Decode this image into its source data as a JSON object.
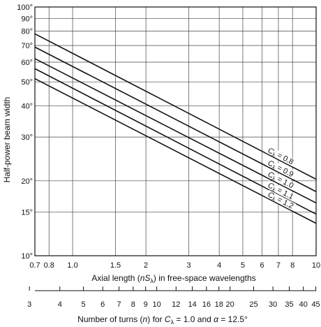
{
  "chart_data": {
    "type": "line",
    "ylabel": "Half-power beam width",
    "xlabel_main": {
      "prefix": "Axial length (",
      "var": "nS",
      "sub": "λ",
      "suffix": ") in free-space wavelengths"
    },
    "xlabel_turns": {
      "prefix": "Number of turns (",
      "var1": "n",
      "mid": ") for ",
      "var2": "C",
      "sub": "λ",
      "mid2": " = 1.0 and ",
      "var3": "α",
      "suffix": " = 12.5°"
    },
    "x_scale": "log",
    "y_scale": "log",
    "xlim": [
      0.7,
      10
    ],
    "ylim": [
      10,
      100
    ],
    "x_ticks": [
      "0.7",
      "0.8",
      "1.0",
      "1.5",
      "2",
      "3",
      "4",
      "5",
      "6",
      "7",
      "8",
      "10"
    ],
    "x_tick_values": [
      0.7,
      0.8,
      1.0,
      1.5,
      2,
      3,
      4,
      5,
      6,
      7,
      8,
      10
    ],
    "y_ticks": [
      "10°",
      "15°",
      "20°",
      "30°",
      "40°",
      "50°",
      "60°",
      "70°",
      "80°",
      "90°",
      "100°"
    ],
    "y_tick_values": [
      10,
      15,
      20,
      30,
      40,
      50,
      60,
      70,
      80,
      90,
      100
    ],
    "turns_ticks": [
      "3",
      "4",
      "5",
      "6",
      "7",
      "8",
      "9",
      "10",
      "12",
      "14",
      "16",
      "18",
      "20",
      "25",
      "30",
      "35",
      "40",
      "45"
    ],
    "turns_tick_values": [
      3,
      4,
      5,
      6,
      7,
      8,
      9,
      10,
      12,
      14,
      16,
      18,
      20,
      25,
      30,
      35,
      40,
      45
    ],
    "grid": true,
    "series": [
      {
        "name": "C_λ = 0.8",
        "cval": "0.8",
        "x": [
          0.7,
          10
        ],
        "y": [
          78,
          20.3
        ]
      },
      {
        "name": "C_λ = 0.9",
        "cval": "0.9",
        "x": [
          0.7,
          10
        ],
        "y": [
          69,
          18.1
        ]
      },
      {
        "name": "C_λ = 1.0",
        "cval": "1.0",
        "x": [
          0.7,
          10
        ],
        "y": [
          62,
          16.3
        ]
      },
      {
        "name": "C_λ = 1.1",
        "cval": "1.1",
        "x": [
          0.7,
          10
        ],
        "y": [
          56.5,
          14.7
        ]
      },
      {
        "name": "C_λ = 1.2",
        "cval": "1.2",
        "x": [
          0.7,
          10
        ],
        "y": [
          51.5,
          13.5
        ]
      }
    ],
    "series_label_prefix": "C",
    "series_label_sub": "λ",
    "series_label_eq": " = "
  }
}
